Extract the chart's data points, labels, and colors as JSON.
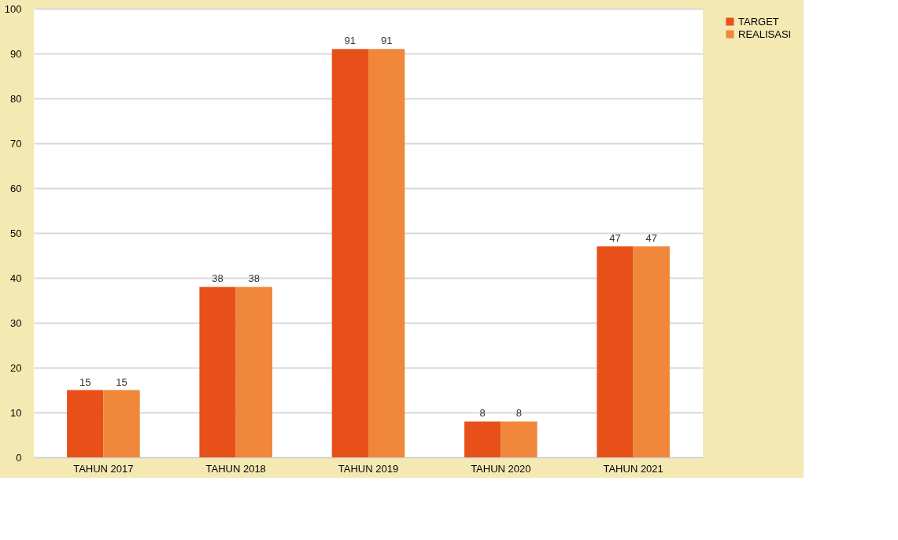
{
  "chart_data": {
    "type": "bar",
    "categories": [
      "TAHUN 2017",
      "TAHUN 2018",
      "TAHUN 2019",
      "TAHUN 2020",
      "TAHUN 2021"
    ],
    "series": [
      {
        "name": "TARGET",
        "color": "#e8501a",
        "values": [
          15,
          38,
          91,
          8,
          47
        ]
      },
      {
        "name": "REALISASI",
        "color": "#f0873a",
        "values": [
          15,
          38,
          91,
          8,
          47
        ]
      }
    ],
    "ylim": [
      0,
      100
    ],
    "yticks": [
      0,
      10,
      20,
      30,
      40,
      50,
      60,
      70,
      80,
      90,
      100
    ],
    "grid": "y",
    "legend": "right",
    "data_labels": true
  }
}
